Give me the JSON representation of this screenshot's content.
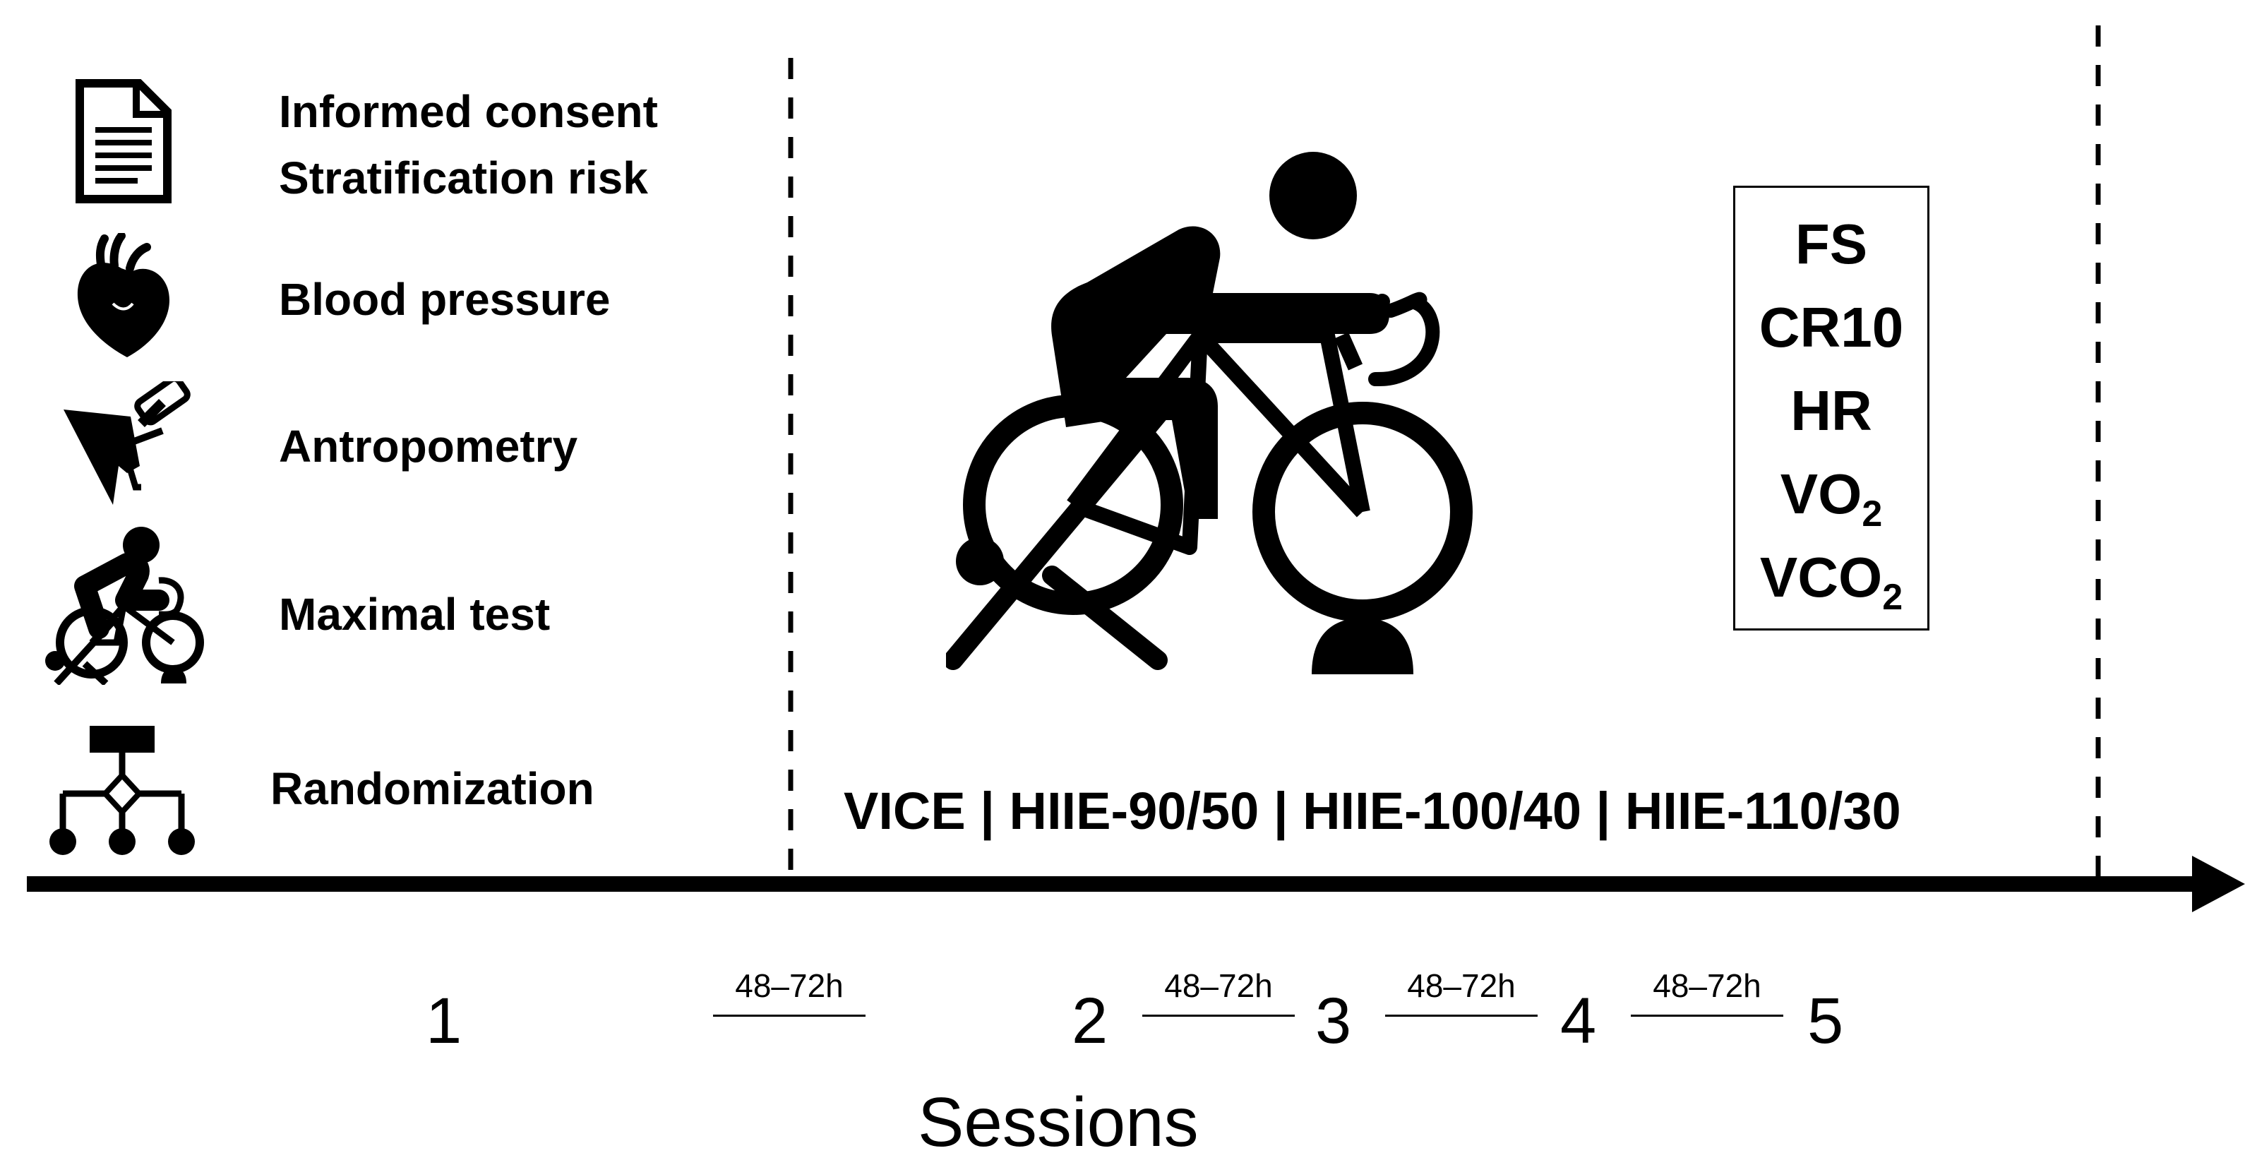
{
  "pre_session": {
    "items": [
      {
        "icon": "document-icon",
        "lines": [
          "Informed consent",
          "Stratification risk"
        ]
      },
      {
        "icon": "heart-icon",
        "lines": [
          "Blood pressure"
        ]
      },
      {
        "icon": "skinfold-caliper-icon",
        "lines": [
          "Antropometry"
        ]
      },
      {
        "icon": "stationary-bike-icon",
        "lines": [
          "Maximal test"
        ]
      },
      {
        "icon": "flowchart-icon",
        "lines": [
          "Randomization"
        ]
      }
    ]
  },
  "sessions": {
    "labels": [
      "1",
      "2",
      "3",
      "4",
      "5"
    ],
    "interval": "48–72h",
    "axis_title": "Sessions"
  },
  "protocol": {
    "text": "VICE | HIIE-90/50 | HIIE-100/40 | HIIE-110/30",
    "icon": "stationary-bike-icon"
  },
  "measures": [
    {
      "base": "FS",
      "sub": ""
    },
    {
      "base": "CR10",
      "sub": ""
    },
    {
      "base": "HR",
      "sub": ""
    },
    {
      "base": "VO",
      "sub": "2"
    },
    {
      "base": "VCO",
      "sub": "2"
    }
  ],
  "colors": {
    "ink": "#000000",
    "background": "#ffffff"
  }
}
